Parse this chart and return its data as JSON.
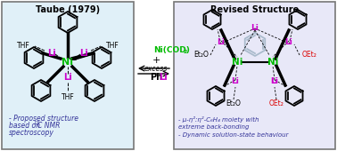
{
  "title_left": "Taube (1979)",
  "title_right": "Revised Structure",
  "ni_color": "#00bb00",
  "li_color": "#cc00cc",
  "red_color": "#dd0000",
  "box_left_bg": "#e0f0f8",
  "box_right_bg": "#e8e8f8",
  "box_border": "#777777",
  "background": "#ffffff",
  "left_note1": "- Proposed structure",
  "left_note2": "based on ",
  "left_note3": "C NMR",
  "left_note4": "spectroscopy",
  "right_note1": "- μ-η²:η²-C₆H₄ moiety with",
  "right_note2": "extreme back-bonding",
  "right_note3": "- Dynamic solution-state behaviour",
  "fig_width": 3.78,
  "fig_height": 1.7,
  "dpi": 100
}
